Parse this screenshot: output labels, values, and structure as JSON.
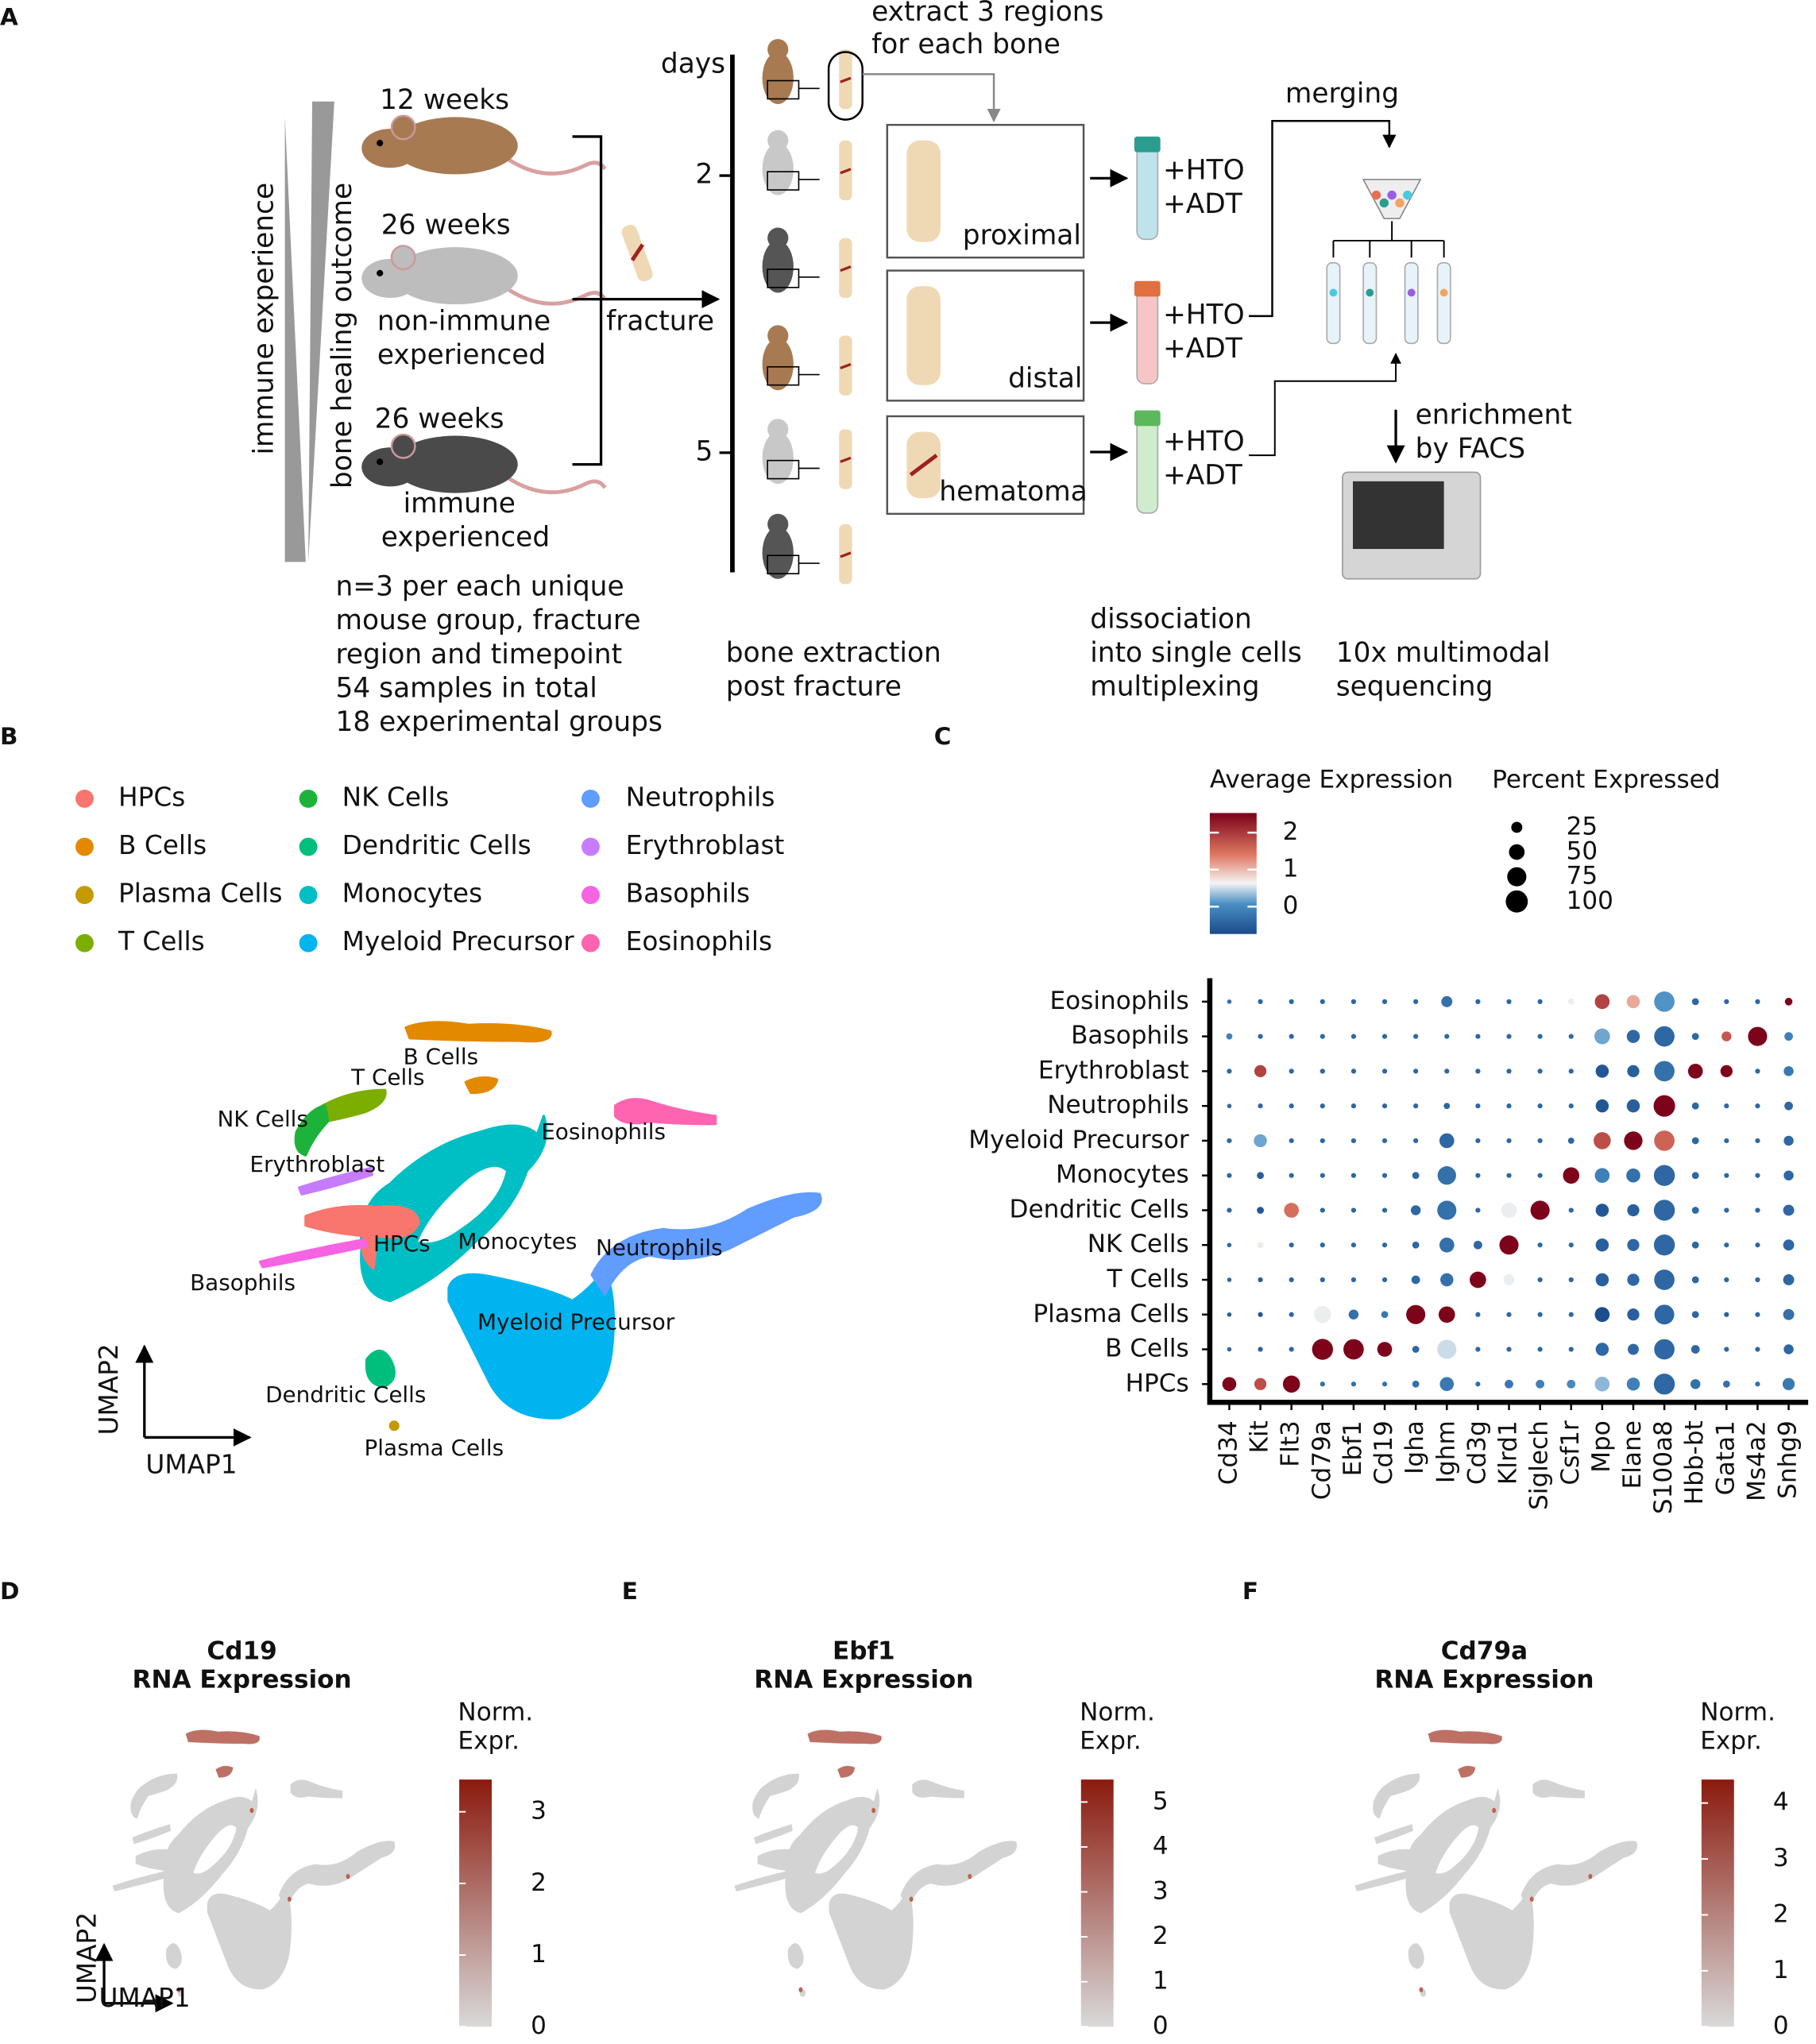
{
  "panel_a": {
    "label": "A",
    "axis_immune": "immune experience",
    "axis_healing": "bone healing outcome",
    "mouse_young": "12 weeks",
    "mouse_naive": "26 weeks",
    "naive_note": [
      "non-immune",
      "experienced"
    ],
    "mouse_experienced": "26 weeks",
    "experienced_note": [
      "immune",
      "experienced"
    ],
    "fracture": "fracture",
    "design_note": [
      "n=3 per each unique",
      "mouse group, fracture",
      "region and timepoint",
      "54 samples in total",
      "18 experimental groups"
    ],
    "days": "days",
    "day_ticks": [
      2,
      5
    ],
    "extract_note": [
      "extract 3 regions",
      "for each bone"
    ],
    "regions": [
      "proximal",
      "distal",
      "hematoma"
    ],
    "tags": [
      "+HTO",
      "+ADT"
    ],
    "merging": "merging",
    "enrichment": [
      "enrichment",
      "by FACS"
    ],
    "steps": [
      [
        "bone extraction",
        "post fracture"
      ],
      [
        "dissociation",
        "into single cells",
        "multiplexing"
      ],
      [
        "10x multimodal",
        "sequencing"
      ]
    ]
  },
  "panel_b": {
    "label": "B",
    "cell_types": [
      {
        "name": "HPCs",
        "color": "#f8766d"
      },
      {
        "name": "B Cells",
        "color": "#e38900"
      },
      {
        "name": "Plasma Cells",
        "color": "#c49a00"
      },
      {
        "name": "T Cells",
        "color": "#7cae00"
      },
      {
        "name": "NK Cells",
        "color": "#1db33b"
      },
      {
        "name": "Dendritic Cells",
        "color": "#00bf7d"
      },
      {
        "name": "Monocytes",
        "color": "#00bfc4"
      },
      {
        "name": "Myeloid Precursor",
        "color": "#00b4ef"
      },
      {
        "name": "Neutrophils",
        "color": "#619cff"
      },
      {
        "name": "Erythroblast",
        "color": "#c77cff"
      },
      {
        "name": "Basophils",
        "color": "#f564e3"
      },
      {
        "name": "Eosinophils",
        "color": "#ff64b0"
      }
    ],
    "x_label": "UMAP1",
    "y_label": "UMAP2"
  },
  "chart_data": [
    {
      "type": "dot",
      "panel": "C",
      "color_title": "Average Expression",
      "size_title": "Percent Expressed",
      "x_categories": [
        "Cd34",
        "Kit",
        "Flt3",
        "Cd79a",
        "Ebf1",
        "Cd19",
        "Igha",
        "Ighm",
        "Cd3g",
        "Klrd1",
        "Siglech",
        "Csf1r",
        "Mpo",
        "Elane",
        "S100a8",
        "Hbb-bt",
        "Gata1",
        "Ms4a2",
        "Snhg9"
      ],
      "y_categories": [
        "Eosinophils",
        "Basophils",
        "Erythroblast",
        "Neutrophils",
        "Myeloid Precursor",
        "Monocytes",
        "Dendritic Cells",
        "NK Cells",
        "T Cells",
        "Plasma Cells",
        "B Cells",
        "HPCs"
      ],
      "expression": [
        [
          -0.3,
          -0.4,
          -0.4,
          -0.4,
          -0.4,
          -0.4,
          -0.4,
          -0.3,
          -0.4,
          -0.4,
          -0.4,
          0.6,
          1.9,
          1.1,
          0.1,
          -0.4,
          -0.4,
          -0.4,
          2.5
        ],
        [
          -0.1,
          -0.4,
          -0.4,
          -0.4,
          -0.4,
          -0.4,
          -0.4,
          -0.4,
          -0.4,
          -0.4,
          -0.4,
          -0.4,
          0.2,
          -0.4,
          -0.4,
          -0.4,
          1.7,
          2.5,
          -0.1
        ],
        [
          -0.4,
          1.9,
          -0.4,
          -0.4,
          -0.4,
          -0.4,
          -0.4,
          -0.4,
          -0.4,
          -0.4,
          -0.4,
          -0.4,
          -0.6,
          -0.5,
          -0.3,
          2.5,
          2.5,
          -0.4,
          -0.2
        ],
        [
          -0.4,
          -0.4,
          -0.4,
          -0.4,
          -0.4,
          -0.4,
          -0.4,
          -0.4,
          -0.4,
          -0.4,
          -0.4,
          -0.4,
          -0.6,
          -0.5,
          2.5,
          -0.4,
          -0.4,
          -0.4,
          -0.4
        ],
        [
          -0.4,
          0.2,
          -0.4,
          -0.4,
          -0.4,
          -0.4,
          -0.4,
          -0.4,
          -0.4,
          -0.4,
          -0.4,
          -0.4,
          1.8,
          2.5,
          1.6,
          -0.4,
          -0.4,
          -0.4,
          -0.4
        ],
        [
          -0.4,
          -0.5,
          -0.4,
          -0.4,
          -0.4,
          -0.4,
          -0.4,
          -0.3,
          -0.4,
          -0.4,
          -0.4,
          2.5,
          -0.1,
          -0.3,
          -0.4,
          -0.4,
          -0.4,
          -0.4,
          -0.4
        ],
        [
          -0.4,
          -0.6,
          1.5,
          -0.4,
          -0.4,
          -0.4,
          -0.4,
          -0.3,
          -0.4,
          0.6,
          2.5,
          -0.4,
          -0.6,
          -0.5,
          -0.4,
          -0.4,
          -0.4,
          -0.4,
          -0.4
        ],
        [
          -0.4,
          0.7,
          -0.4,
          -0.4,
          -0.4,
          -0.4,
          -0.4,
          -0.3,
          -0.4,
          2.5,
          -0.4,
          -0.4,
          -0.5,
          -0.4,
          -0.4,
          -0.4,
          -0.4,
          -0.4,
          -0.4
        ],
        [
          -0.4,
          -0.5,
          -0.4,
          -0.4,
          -0.4,
          -0.4,
          -0.4,
          -0.3,
          2.5,
          0.6,
          -0.4,
          -0.4,
          -0.5,
          -0.4,
          -0.4,
          -0.4,
          -0.4,
          -0.4,
          -0.4
        ],
        [
          -0.5,
          -0.6,
          -0.4,
          0.6,
          -0.3,
          -0.2,
          2.5,
          2.5,
          -0.4,
          -0.4,
          -0.4,
          -0.4,
          -0.7,
          -0.5,
          -0.4,
          -0.4,
          -0.5,
          -0.4,
          -0.3
        ],
        [
          -0.4,
          -0.5,
          -0.4,
          2.5,
          2.5,
          2.5,
          -0.4,
          0.5,
          -0.4,
          -0.4,
          -0.4,
          -0.4,
          -0.4,
          -0.4,
          -0.4,
          -0.4,
          -0.4,
          -0.4,
          -0.4
        ],
        [
          2.5,
          1.8,
          2.5,
          -0.3,
          -0.3,
          -0.3,
          -0.3,
          -0.2,
          -0.3,
          -0.2,
          -0.1,
          0,
          0.3,
          -0.1,
          -0.4,
          -0.3,
          -0.3,
          -0.3,
          -0.2
        ]
      ],
      "percent": [
        [
          4,
          5,
          5,
          5,
          5,
          5,
          5,
          25,
          5,
          5,
          5,
          8,
          45,
          35,
          85,
          10,
          5,
          5,
          12
        ],
        [
          8,
          5,
          5,
          5,
          5,
          5,
          5,
          5,
          5,
          5,
          5,
          5,
          50,
          35,
          85,
          10,
          20,
          75,
          15
        ],
        [
          5,
          30,
          5,
          5,
          5,
          5,
          5,
          5,
          5,
          5,
          5,
          5,
          35,
          30,
          85,
          45,
          30,
          5,
          20
        ],
        [
          4,
          5,
          5,
          5,
          5,
          5,
          5,
          8,
          5,
          5,
          5,
          5,
          35,
          35,
          95,
          10,
          5,
          5,
          15
        ],
        [
          5,
          35,
          5,
          5,
          5,
          5,
          5,
          45,
          5,
          5,
          5,
          8,
          60,
          70,
          85,
          10,
          5,
          5,
          20
        ],
        [
          5,
          10,
          5,
          5,
          5,
          5,
          10,
          70,
          5,
          5,
          5,
          55,
          45,
          40,
          90,
          10,
          5,
          5,
          20
        ],
        [
          5,
          10,
          45,
          5,
          5,
          5,
          20,
          75,
          5,
          50,
          75,
          5,
          35,
          30,
          90,
          10,
          5,
          5,
          25
        ],
        [
          4,
          8,
          5,
          5,
          5,
          5,
          10,
          45,
          15,
          75,
          5,
          5,
          35,
          30,
          90,
          10,
          5,
          5,
          25
        ],
        [
          4,
          5,
          5,
          5,
          5,
          5,
          15,
          35,
          55,
          25,
          5,
          5,
          35,
          30,
          85,
          10,
          5,
          5,
          25
        ],
        [
          4,
          5,
          5,
          60,
          20,
          10,
          75,
          55,
          5,
          5,
          5,
          5,
          45,
          30,
          80,
          10,
          5,
          5,
          25
        ],
        [
          4,
          5,
          5,
          90,
          85,
          45,
          10,
          75,
          5,
          5,
          5,
          5,
          35,
          25,
          85,
          15,
          5,
          5,
          20
        ],
        [
          40,
          30,
          60,
          5,
          5,
          5,
          10,
          40,
          5,
          15,
          15,
          15,
          45,
          35,
          90,
          20,
          10,
          5,
          30
        ]
      ],
      "clim": [
        -0.74,
        2.53
      ],
      "cticks": [
        0,
        1,
        2
      ],
      "size_ticks": [
        25,
        50,
        75,
        100
      ]
    },
    {
      "type": "feature",
      "panel": "D",
      "title": [
        "Cd19",
        "RNA Expression"
      ],
      "legend_title": [
        "Norm.",
        "Expr."
      ],
      "clim": [
        0,
        3.45
      ],
      "cticks": [
        0,
        1,
        2,
        3
      ],
      "x_label": "UMAP1",
      "y_label": "UMAP2"
    },
    {
      "type": "feature",
      "panel": "E",
      "title": [
        "Ebf1",
        "RNA Expression"
      ],
      "legend_title": [
        "Norm.",
        "Expr."
      ],
      "clim": [
        0,
        5.5
      ],
      "cticks": [
        0,
        1,
        2,
        3,
        4,
        5
      ]
    },
    {
      "type": "feature",
      "panel": "F",
      "title": [
        "Cd79a",
        "RNA Expression"
      ],
      "legend_title": [
        "Norm.",
        "Expr."
      ],
      "clim": [
        0,
        4.42
      ],
      "cticks": [
        0,
        1,
        2,
        3,
        4
      ]
    }
  ]
}
